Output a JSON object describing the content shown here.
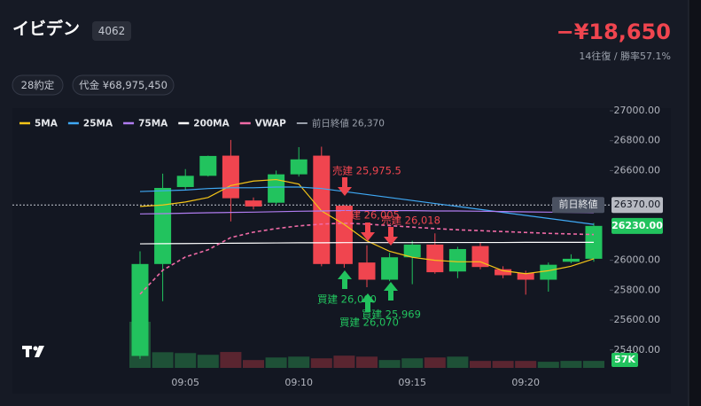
{
  "header": {
    "title": "イビデン",
    "code": "4062",
    "pnl": "−¥18,650",
    "stats": "14往復 / 勝率57.1%",
    "badges": [
      "28約定",
      "代金 ¥68,975,450"
    ]
  },
  "chart_data": {
    "type": "candlestick",
    "categories": [
      null,
      null,
      "09:05",
      null,
      null,
      null,
      null,
      "09:10",
      null,
      null,
      null,
      null,
      "09:15",
      null,
      null,
      null,
      null,
      "09:20",
      null,
      null,
      null
    ],
    "open": [
      25360,
      25975,
      26490,
      26565,
      26700,
      26400,
      26385,
      26575,
      26700,
      26365,
      25985,
      25870,
      26020,
      26105,
      25925,
      26095,
      25940,
      25915,
      25870,
      25990,
      26010
    ],
    "high": [
      26060,
      26580,
      26610,
      26700,
      26805,
      26420,
      26600,
      26757,
      26760,
      26370,
      26100,
      26050,
      26130,
      26180,
      26090,
      26120,
      25960,
      25930,
      25985,
      26040,
      26250
    ],
    "low": [
      25340,
      25726,
      26470,
      26560,
      26260,
      26340,
      26370,
      26560,
      25960,
      25950,
      25820,
      25860,
      25840,
      25910,
      25880,
      25940,
      25880,
      25770,
      25790,
      25980,
      25990
    ],
    "close": [
      25975,
      26484,
      26565,
      26698,
      26415,
      26360,
      26575,
      26675,
      25975,
      25975,
      25870,
      26020,
      26105,
      25920,
      26075,
      25955,
      25900,
      25870,
      25970,
      26010,
      26230
    ],
    "up_color": "#22c35e",
    "down_color": "#f0454f",
    "ylim": [
      25280,
      27000
    ],
    "yticks": [
      {
        "value": 27000,
        "label": "27000.00"
      },
      {
        "value": 26800,
        "label": "26800.00"
      },
      {
        "value": 26600,
        "label": "26600.00"
      },
      {
        "value": 26000,
        "label": "26000.00"
      },
      {
        "value": 25800,
        "label": "25800.00"
      },
      {
        "value": 25600,
        "label": "25600.00"
      },
      {
        "value": 25400,
        "label": "25400.00"
      }
    ],
    "series": [
      {
        "name": "5MA",
        "color": "#f5c518",
        "dashed": false,
        "values": [
          26360,
          26370,
          26390,
          26420,
          26500,
          26530,
          26540,
          26510,
          26330,
          26240,
          26130,
          26060,
          26020,
          26000,
          25990,
          25990,
          25930,
          25910,
          25930,
          25960,
          26010
        ]
      },
      {
        "name": "25MA",
        "color": "#3fa9f5",
        "dashed": false,
        "values": [
          26460,
          26465,
          26470,
          26480,
          26485,
          26485,
          26490,
          26490,
          26480,
          26460,
          26440,
          26420,
          26400,
          26380,
          26360,
          26340,
          26320,
          26300,
          26280,
          26260,
          26240
        ]
      },
      {
        "name": "75MA",
        "color": "#b07cf0",
        "dashed": false,
        "values": [
          26310,
          26312,
          26315,
          26318,
          26320,
          26322,
          26325,
          26328,
          26330,
          26332,
          26332,
          26332,
          26332,
          26330,
          26330,
          26328,
          26326,
          26324,
          26322,
          26320,
          26318
        ]
      },
      {
        "name": "200MA",
        "color": "#ffffff",
        "dashed": false,
        "values": [
          26110,
          26111,
          26112,
          26113,
          26114,
          26115,
          26116,
          26117,
          26117,
          26118,
          26118,
          26118,
          26118,
          26119,
          26119,
          26119,
          26119,
          26120,
          26120,
          26120,
          26120
        ]
      },
      {
        "name": "VWAP",
        "color": "#f06aa6",
        "dashed": true,
        "values": [
          25773,
          25933,
          26022,
          26070,
          26152,
          26188,
          26212,
          26230,
          26242,
          26248,
          26242,
          26232,
          26222,
          26212,
          26204,
          26198,
          26192,
          26186,
          26180,
          26176,
          26172
        ]
      }
    ],
    "prev_close": {
      "name": "前日終値 26,370",
      "value": 26370,
      "tag": "前日終値",
      "label": "26370.00",
      "color": "#9aa0ab"
    },
    "last_price": {
      "value": 26230,
      "label": "26230.00"
    },
    "volume": {
      "values": [
        377000,
        128000,
        121000,
        107000,
        130000,
        64000,
        85000,
        92000,
        78000,
        100000,
        92000,
        64000,
        78000,
        85000,
        92000,
        57000,
        57000,
        57000,
        50000,
        57000,
        57000
      ],
      "ylim": [
        0,
        420000
      ],
      "last_label": "57K"
    },
    "trades": [
      {
        "text": "売建 25,975.5",
        "side": "sell"
      },
      {
        "text": "売建 26,005",
        "side": "sell"
      },
      {
        "text": "売建 26,018",
        "side": "sell"
      },
      {
        "text": "買建 26,000",
        "side": "buy"
      },
      {
        "text": "買建 26,070",
        "side": "buy"
      },
      {
        "text": "買建 25,969",
        "side": "buy"
      }
    ]
  }
}
